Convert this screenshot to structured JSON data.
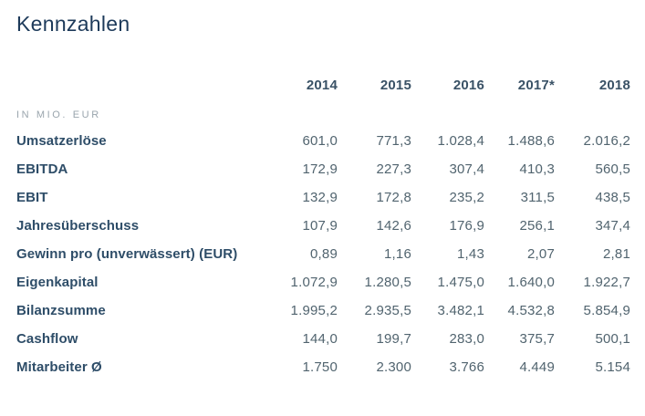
{
  "page": {
    "title": "Kennzahlen"
  },
  "colors": {
    "title": "#1d3a5a",
    "year_header": "#3a5266",
    "row_label": "#2e4d68",
    "value_text": "#51646f",
    "unit_text": "#9aa5ad",
    "background": "#ffffff"
  },
  "table": {
    "unit_label": "IN MIO. EUR",
    "years": [
      "2014",
      "2015",
      "2016",
      "2017*",
      "2018"
    ],
    "rows": [
      {
        "label": "Umsatzerlöse",
        "values": [
          "601,0",
          "771,3",
          "1.028,4",
          "1.488,6",
          "2.016,2"
        ]
      },
      {
        "label": "EBITDA",
        "values": [
          "172,9",
          "227,3",
          "307,4",
          "410,3",
          "560,5"
        ]
      },
      {
        "label": "EBIT",
        "values": [
          "132,9",
          "172,8",
          "235,2",
          "311,5",
          "438,5"
        ]
      },
      {
        "label": "Jahresüberschuss",
        "values": [
          "107,9",
          "142,6",
          "176,9",
          "256,1",
          "347,4"
        ]
      },
      {
        "label": "Gewinn pro (unverwässert) (EUR)",
        "values": [
          "0,89",
          "1,16",
          "1,43",
          "2,07",
          "2,81"
        ]
      },
      {
        "label": "Eigenkapital",
        "values": [
          "1.072,9",
          "1.280,5",
          "1.475,0",
          "1.640,0",
          "1.922,7"
        ]
      },
      {
        "label": "Bilanzsumme",
        "values": [
          "1.995,2",
          "2.935,5",
          "3.482,1",
          "4.532,8",
          "5.854,9"
        ]
      },
      {
        "label": "Cashflow",
        "values": [
          "144,0",
          "199,7",
          "283,0",
          "375,7",
          "500,1"
        ]
      },
      {
        "label": "Mitarbeiter Ø",
        "values": [
          "1.750",
          "2.300",
          "3.766",
          "4.449",
          "5.154"
        ]
      }
    ]
  },
  "chart_data": {
    "type": "table",
    "title": "Kennzahlen",
    "unit": "IN MIO. EUR",
    "categories": [
      "2014",
      "2015",
      "2016",
      "2017*",
      "2018"
    ],
    "series": [
      {
        "name": "Umsatzerlöse",
        "values": [
          601.0,
          771.3,
          1028.4,
          1488.6,
          2016.2
        ]
      },
      {
        "name": "EBITDA",
        "values": [
          172.9,
          227.3,
          307.4,
          410.3,
          560.5
        ]
      },
      {
        "name": "EBIT",
        "values": [
          132.9,
          172.8,
          235.2,
          311.5,
          438.5
        ]
      },
      {
        "name": "Jahresüberschuss",
        "values": [
          107.9,
          142.6,
          176.9,
          256.1,
          347.4
        ]
      },
      {
        "name": "Gewinn pro (unverwässert) (EUR)",
        "values": [
          0.89,
          1.16,
          1.43,
          2.07,
          2.81
        ]
      },
      {
        "name": "Eigenkapital",
        "values": [
          1072.9,
          1280.5,
          1475.0,
          1640.0,
          1922.7
        ]
      },
      {
        "name": "Bilanzsumme",
        "values": [
          1995.2,
          2935.5,
          3482.1,
          4532.8,
          5854.9
        ]
      },
      {
        "name": "Cashflow",
        "values": [
          144.0,
          199.7,
          283.0,
          375.7,
          500.1
        ]
      },
      {
        "name": "Mitarbeiter Ø",
        "values": [
          1750,
          2300,
          3766,
          4449,
          5154
        ]
      }
    ],
    "layout": {
      "grid": false,
      "legend": false,
      "value_alignment": "right",
      "number_format": "de-DE"
    }
  }
}
